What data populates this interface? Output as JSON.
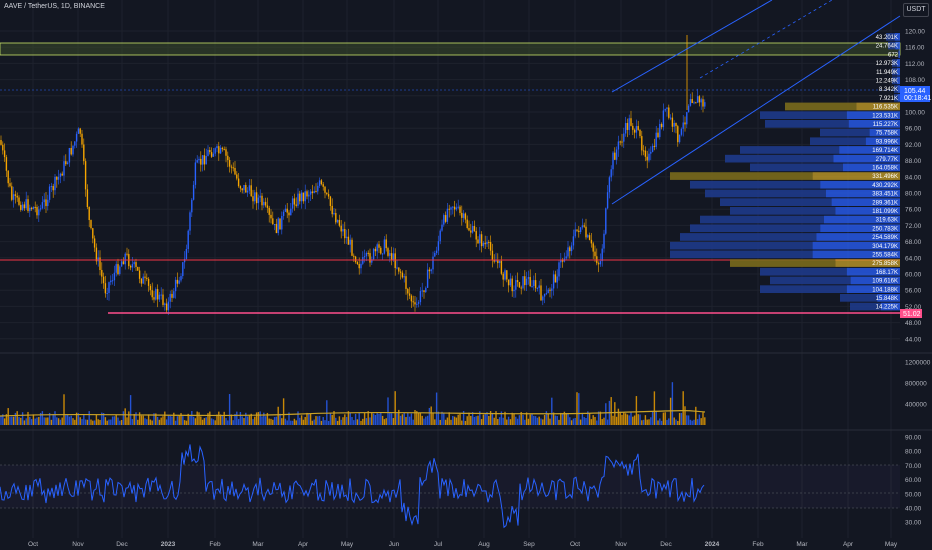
{
  "header": {
    "symbol": "AAVE / TetherUS, 1D, BINANCE",
    "currency": "USDT"
  },
  "price_axis": {
    "ticks": [
      "120.00",
      "116.00",
      "112.00",
      "108.00",
      "104.00",
      "100.00",
      "96.00",
      "92.00",
      "88.00",
      "84.00",
      "80.00",
      "76.00",
      "72.00",
      "68.00",
      "64.00",
      "60.00",
      "56.00",
      "52.00",
      "48.00",
      "44.00"
    ]
  },
  "price_labels": {
    "last": "105.44",
    "countdown": "00:18:41"
  },
  "volume_axis": {
    "ticks": [
      "1200000",
      "800000",
      "400000"
    ]
  },
  "rsi_axis": {
    "ticks": [
      "90.00",
      "80.00",
      "70.00",
      "60.00",
      "50.00",
      "40.00",
      "30.00"
    ]
  },
  "time_axis": {
    "labels": [
      "Oct",
      "Nov",
      "Dec",
      "2023",
      "Feb",
      "Mar",
      "Apr",
      "May",
      "Jun",
      "Jul",
      "Aug",
      "Sep",
      "Oct",
      "Nov",
      "Dec",
      "2024",
      "Feb",
      "Mar",
      "Apr",
      "May"
    ]
  },
  "volume_profile": {
    "labels": [
      "43.201K",
      "24.764K",
      "672",
      "12.973K",
      "11.949K",
      "12.249K",
      "8.342K",
      "7.921K",
      "116.535K",
      "123.531K",
      "115.227K",
      "75.758K",
      "93.996K",
      "169.714K",
      "279.77K",
      "164.058K",
      "331.496K",
      "430.292K",
      "383.451K",
      "289.361K",
      "181.099K",
      "319.63K",
      "250.783K",
      "254.589K",
      "304.179K",
      "255.584K",
      "275.858K",
      "168.17K",
      "109.616K",
      "104.188K",
      "15.848K",
      "14.225K"
    ],
    "bright_labels": [
      "105.44",
      "00:18:41",
      "51.02"
    ]
  },
  "colors": {
    "background": "#131722",
    "candle": "#f7a600",
    "candle_alt": "#2962ff",
    "channel": "#2962ff",
    "support": "#f23645",
    "rsi": "#2962ff",
    "highlight": "#f7a600"
  }
}
